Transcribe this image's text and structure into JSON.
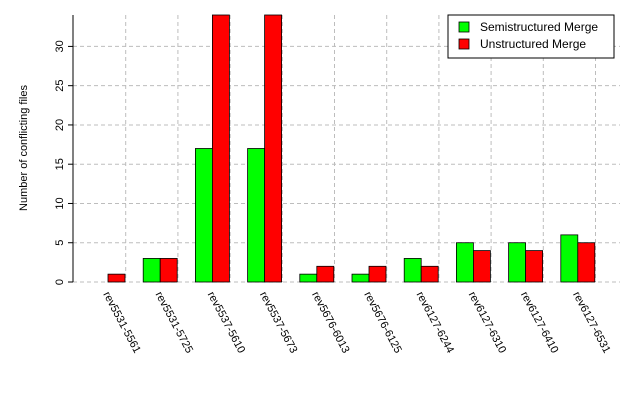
{
  "chart_data": {
    "type": "bar",
    "title": "",
    "xlabel": "",
    "ylabel": "Number of conflicting files",
    "ylim": [
      0,
      34
    ],
    "yticks": [
      0,
      5,
      10,
      15,
      20,
      25,
      30
    ],
    "grid": true,
    "legend_position": "top-right",
    "categories": [
      "rev5531-5561",
      "rev5531-5725",
      "rev5537-5610",
      "rev5537-5673",
      "rev5676-6013",
      "rev5676-6125",
      "rev6127-6244",
      "rev6127-6310",
      "rev6127-6410",
      "rev6127-6531"
    ],
    "series": [
      {
        "name": "Semistructured Merge",
        "color": "#00ff00",
        "values": [
          0,
          3,
          17,
          17,
          1,
          1,
          3,
          5,
          5,
          6
        ]
      },
      {
        "name": "Unstructured Merge",
        "color": "#ff0000",
        "values": [
          1,
          3,
          34,
          34,
          2,
          2,
          2,
          4,
          4,
          5
        ]
      }
    ]
  }
}
